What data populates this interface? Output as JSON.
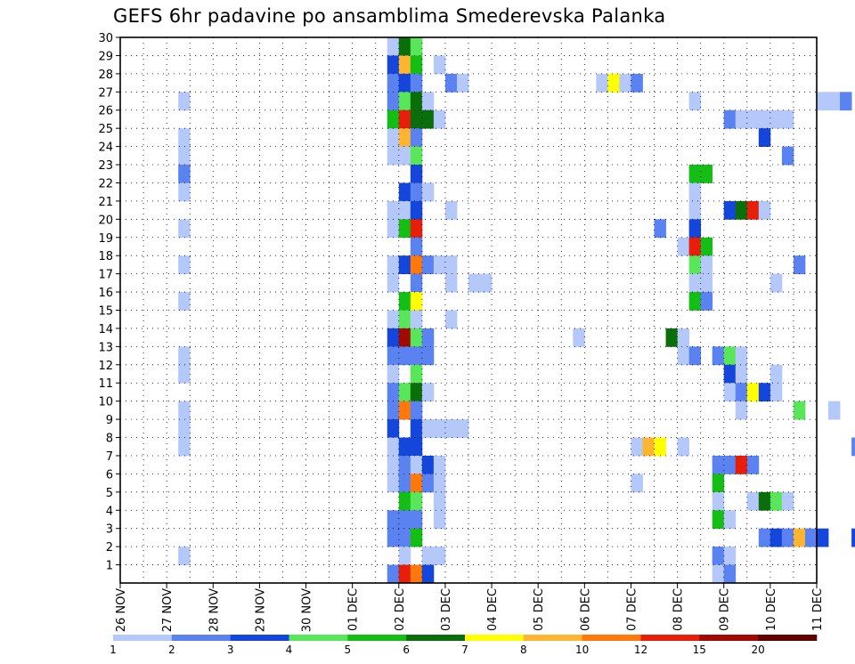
{
  "chart_data": {
    "type": "heatmap",
    "title": "GEFS 6hr padavine po ansamblima Smederevska Palanka",
    "xlabel": "",
    "ylabel": "",
    "x_ticks": [
      "26 NOV",
      "27 NOV",
      "28 NOV",
      "29 NOV",
      "30 NOV",
      "01 DEC",
      "02 DEC",
      "03 DEC",
      "04 DEC",
      "05 DEC",
      "06 DEC",
      "07 DEC",
      "08 DEC",
      "09 DEC",
      "10 DEC",
      "11 DEC"
    ],
    "y_ticks": [
      1,
      2,
      3,
      4,
      5,
      6,
      7,
      8,
      9,
      10,
      11,
      12,
      13,
      14,
      15,
      16,
      17,
      18,
      19,
      20,
      21,
      22,
      23,
      24,
      25,
      26,
      27,
      28,
      29,
      30
    ],
    "x_range_days": [
      0,
      15
    ],
    "y_range": [
      0,
      30
    ],
    "grid": "dotted",
    "colorbar": {
      "labels": [
        "1",
        "2",
        "3",
        "4",
        "5",
        "6",
        "7",
        "8",
        "10",
        "12",
        "15",
        "20"
      ],
      "colors": [
        "#b4c8fa",
        "#5a82f0",
        "#1446dc",
        "#5ae65a",
        "#14be14",
        "#0a6e0a",
        "#ffff00",
        "#ffb432",
        "#ff780a",
        "#e61e0a",
        "#a00a00",
        "#640000"
      ]
    },
    "cell_note": "each cell = [member (row), 6h step index from 26 NOV 00z, colour class 0-11]",
    "cells": [
      [
        30,
        23,
        0
      ],
      [
        30,
        24,
        5
      ],
      [
        30,
        25,
        3
      ],
      [
        29,
        23,
        2
      ],
      [
        29,
        24,
        7
      ],
      [
        29,
        25,
        4
      ],
      [
        29,
        27,
        0
      ],
      [
        29,
        64,
        0
      ],
      [
        29,
        65,
        1
      ],
      [
        29,
        66,
        5
      ],
      [
        29,
        67,
        1
      ],
      [
        29,
        71,
        0
      ],
      [
        29,
        91,
        0
      ],
      [
        29,
        92,
        1
      ],
      [
        29,
        93,
        8
      ],
      [
        29,
        94,
        0
      ],
      [
        29,
        113,
        0
      ],
      [
        29,
        114,
        9
      ],
      [
        29,
        115,
        8
      ],
      [
        29,
        116,
        3
      ],
      [
        29,
        117,
        7
      ],
      [
        29,
        118,
        2
      ],
      [
        29,
        119,
        0
      ],
      [
        29,
        120,
        0
      ],
      [
        29,
        121,
        1
      ],
      [
        29,
        122,
        1
      ],
      [
        29,
        123,
        2
      ],
      [
        29,
        135,
        0
      ],
      [
        28,
        23,
        1
      ],
      [
        28,
        24,
        2
      ],
      [
        28,
        25,
        1
      ],
      [
        28,
        28,
        1
      ],
      [
        28,
        29,
        0
      ],
      [
        28,
        41,
        0
      ],
      [
        28,
        42,
        6
      ],
      [
        28,
        43,
        0
      ],
      [
        28,
        44,
        1
      ],
      [
        28,
        69,
        5
      ],
      [
        28,
        70,
        5
      ],
      [
        28,
        104,
        4
      ],
      [
        28,
        105,
        2
      ],
      [
        28,
        106,
        0
      ],
      [
        28,
        107,
        0
      ],
      [
        28,
        120,
        8
      ],
      [
        28,
        121,
        5
      ],
      [
        28,
        122,
        0
      ],
      [
        28,
        123,
        0
      ],
      [
        27,
        5,
        0
      ],
      [
        27,
        23,
        1
      ],
      [
        27,
        24,
        3
      ],
      [
        27,
        25,
        5
      ],
      [
        27,
        26,
        0
      ],
      [
        27,
        49,
        0
      ],
      [
        27,
        60,
        0
      ],
      [
        27,
        61,
        0
      ],
      [
        27,
        62,
        1
      ],
      [
        27,
        64,
        0
      ],
      [
        27,
        65,
        0
      ],
      [
        27,
        135,
        0
      ],
      [
        26,
        23,
        4
      ],
      [
        26,
        24,
        9
      ],
      [
        26,
        25,
        5
      ],
      [
        26,
        26,
        5
      ],
      [
        26,
        27,
        0
      ],
      [
        26,
        52,
        1
      ],
      [
        26,
        53,
        0
      ],
      [
        26,
        54,
        0
      ],
      [
        26,
        55,
        0
      ],
      [
        26,
        56,
        0
      ],
      [
        26,
        57,
        0
      ],
      [
        26,
        72,
        0
      ],
      [
        25,
        5,
        0
      ],
      [
        25,
        23,
        0
      ],
      [
        25,
        24,
        7
      ],
      [
        25,
        25,
        1
      ],
      [
        25,
        55,
        2
      ],
      [
        25,
        74,
        0
      ],
      [
        24,
        5,
        0
      ],
      [
        24,
        23,
        0
      ],
      [
        24,
        24,
        0
      ],
      [
        24,
        25,
        3
      ],
      [
        24,
        57,
        1
      ],
      [
        23,
        5,
        1
      ],
      [
        23,
        25,
        2
      ],
      [
        23,
        49,
        4
      ],
      [
        23,
        50,
        4
      ],
      [
        22,
        5,
        0
      ],
      [
        22,
        24,
        2
      ],
      [
        22,
        25,
        1
      ],
      [
        22,
        26,
        0
      ],
      [
        22,
        49,
        0
      ],
      [
        21,
        23,
        0
      ],
      [
        21,
        24,
        0
      ],
      [
        21,
        25,
        2
      ],
      [
        21,
        28,
        0
      ],
      [
        21,
        49,
        0
      ],
      [
        21,
        52,
        2
      ],
      [
        21,
        53,
        5
      ],
      [
        21,
        54,
        9
      ],
      [
        21,
        55,
        0
      ],
      [
        20,
        5,
        0
      ],
      [
        20,
        23,
        0
      ],
      [
        20,
        24,
        4
      ],
      [
        20,
        25,
        9
      ],
      [
        20,
        46,
        1
      ],
      [
        20,
        49,
        2
      ],
      [
        19,
        25,
        1
      ],
      [
        19,
        48,
        0
      ],
      [
        19,
        49,
        9
      ],
      [
        19,
        50,
        4
      ],
      [
        19,
        66,
        0
      ],
      [
        19,
        79,
        0
      ],
      [
        19,
        80,
        2
      ],
      [
        19,
        81,
        2
      ],
      [
        19,
        83,
        0
      ],
      [
        19,
        84,
        8
      ],
      [
        19,
        85,
        0
      ],
      [
        19,
        86,
        0
      ],
      [
        18,
        5,
        0
      ],
      [
        18,
        23,
        0
      ],
      [
        18,
        24,
        2
      ],
      [
        18,
        25,
        8
      ],
      [
        18,
        26,
        1
      ],
      [
        18,
        27,
        0
      ],
      [
        18,
        28,
        0
      ],
      [
        18,
        49,
        3
      ],
      [
        18,
        50,
        0
      ],
      [
        18,
        58,
        1
      ],
      [
        18,
        104,
        0
      ],
      [
        18,
        110,
        0
      ],
      [
        18,
        111,
        0
      ],
      [
        18,
        112,
        0
      ],
      [
        17,
        23,
        0
      ],
      [
        17,
        25,
        1
      ],
      [
        17,
        28,
        0
      ],
      [
        17,
        30,
        0
      ],
      [
        17,
        31,
        0
      ],
      [
        17,
        49,
        0
      ],
      [
        17,
        50,
        0
      ],
      [
        17,
        56,
        0
      ],
      [
        17,
        76,
        11
      ],
      [
        17,
        77,
        9
      ],
      [
        17,
        78,
        1
      ],
      [
        17,
        79,
        0
      ],
      [
        17,
        80,
        1
      ],
      [
        17,
        81,
        0
      ],
      [
        17,
        82,
        0
      ],
      [
        17,
        83,
        0
      ],
      [
        17,
        84,
        0
      ],
      [
        16,
        5,
        0
      ],
      [
        16,
        24,
        4
      ],
      [
        16,
        25,
        6
      ],
      [
        16,
        49,
        4
      ],
      [
        16,
        50,
        1
      ],
      [
        16,
        80,
        0
      ],
      [
        16,
        81,
        0
      ],
      [
        16,
        84,
        0
      ],
      [
        16,
        85,
        0
      ],
      [
        15,
        23,
        0
      ],
      [
        15,
        24,
        3
      ],
      [
        15,
        25,
        0
      ],
      [
        15,
        28,
        0
      ],
      [
        14,
        23,
        2
      ],
      [
        14,
        24,
        10
      ],
      [
        14,
        25,
        3
      ],
      [
        14,
        26,
        1
      ],
      [
        14,
        39,
        0
      ],
      [
        14,
        47,
        5
      ],
      [
        14,
        48,
        0
      ],
      [
        14,
        64,
        1
      ],
      [
        14,
        65,
        3
      ],
      [
        14,
        66,
        4
      ],
      [
        14,
        67,
        6
      ],
      [
        14,
        68,
        9
      ],
      [
        14,
        69,
        1
      ],
      [
        14,
        70,
        0
      ],
      [
        13,
        5,
        0
      ],
      [
        13,
        23,
        1
      ],
      [
        13,
        24,
        1
      ],
      [
        13,
        25,
        1
      ],
      [
        13,
        26,
        1
      ],
      [
        13,
        48,
        0
      ],
      [
        13,
        49,
        1
      ],
      [
        13,
        51,
        1
      ],
      [
        13,
        52,
        3
      ],
      [
        13,
        53,
        0
      ],
      [
        13,
        80,
        0
      ],
      [
        13,
        82,
        0
      ],
      [
        13,
        83,
        1
      ],
      [
        13,
        84,
        5
      ],
      [
        13,
        104,
        2
      ],
      [
        13,
        105,
        0
      ],
      [
        13,
        106,
        1
      ],
      [
        13,
        107,
        9
      ],
      [
        13,
        108,
        3
      ],
      [
        13,
        109,
        5
      ],
      [
        13,
        110,
        2
      ],
      [
        13,
        135,
        1
      ],
      [
        12,
        5,
        0
      ],
      [
        12,
        23,
        0
      ],
      [
        12,
        25,
        3
      ],
      [
        12,
        52,
        2
      ],
      [
        12,
        53,
        0
      ],
      [
        12,
        56,
        0
      ],
      [
        12,
        98,
        0
      ],
      [
        12,
        99,
        1
      ],
      [
        12,
        100,
        3
      ],
      [
        12,
        101,
        1
      ],
      [
        11,
        23,
        1
      ],
      [
        11,
        24,
        3
      ],
      [
        11,
        25,
        5
      ],
      [
        11,
        26,
        0
      ],
      [
        11,
        52,
        0
      ],
      [
        11,
        53,
        1
      ],
      [
        11,
        54,
        6
      ],
      [
        11,
        55,
        2
      ],
      [
        11,
        56,
        0
      ],
      [
        11,
        70,
        0
      ],
      [
        10,
        5,
        0
      ],
      [
        10,
        23,
        1
      ],
      [
        10,
        24,
        8
      ],
      [
        10,
        25,
        1
      ],
      [
        10,
        53,
        0
      ],
      [
        10,
        58,
        3
      ],
      [
        10,
        61,
        0
      ],
      [
        10,
        74,
        0
      ],
      [
        10,
        75,
        0
      ],
      [
        10,
        78,
        8
      ],
      [
        10,
        79,
        1
      ],
      [
        10,
        80,
        0
      ],
      [
        10,
        82,
        0
      ],
      [
        10,
        83,
        1
      ],
      [
        10,
        84,
        5
      ],
      [
        10,
        85,
        0
      ],
      [
        10,
        86,
        1
      ],
      [
        10,
        87,
        5
      ],
      [
        10,
        88,
        1
      ],
      [
        10,
        91,
        1
      ],
      [
        9,
        5,
        0
      ],
      [
        9,
        23,
        2
      ],
      [
        9,
        25,
        2
      ],
      [
        9,
        26,
        0
      ],
      [
        9,
        27,
        0
      ],
      [
        9,
        28,
        0
      ],
      [
        9,
        29,
        0
      ],
      [
        9,
        83,
        0
      ],
      [
        8,
        5,
        0
      ],
      [
        8,
        23,
        0
      ],
      [
        8,
        24,
        2
      ],
      [
        8,
        25,
        2
      ],
      [
        8,
        44,
        0
      ],
      [
        8,
        45,
        7
      ],
      [
        8,
        46,
        6
      ],
      [
        8,
        48,
        0
      ],
      [
        8,
        63,
        1
      ],
      [
        8,
        80,
        1
      ],
      [
        8,
        81,
        0
      ],
      [
        8,
        83,
        1
      ],
      [
        8,
        84,
        3
      ],
      [
        8,
        85,
        3
      ],
      [
        8,
        86,
        0
      ],
      [
        7,
        23,
        0
      ],
      [
        7,
        24,
        1
      ],
      [
        7,
        25,
        0
      ],
      [
        7,
        26,
        2
      ],
      [
        7,
        27,
        0
      ],
      [
        7,
        51,
        1
      ],
      [
        7,
        52,
        1
      ],
      [
        7,
        53,
        9
      ],
      [
        7,
        54,
        1
      ],
      [
        7,
        69,
        0
      ],
      [
        7,
        70,
        0
      ],
      [
        6,
        23,
        0
      ],
      [
        6,
        24,
        1
      ],
      [
        6,
        25,
        8
      ],
      [
        6,
        26,
        1
      ],
      [
        6,
        27,
        0
      ],
      [
        6,
        44,
        0
      ],
      [
        6,
        51,
        4
      ],
      [
        6,
        79,
        2
      ],
      [
        6,
        80,
        0
      ],
      [
        5,
        24,
        4
      ],
      [
        5,
        25,
        3
      ],
      [
        5,
        27,
        0
      ],
      [
        5,
        51,
        0
      ],
      [
        5,
        54,
        0
      ],
      [
        5,
        55,
        5
      ],
      [
        5,
        56,
        3
      ],
      [
        5,
        57,
        0
      ],
      [
        5,
        72,
        0
      ],
      [
        5,
        80,
        5
      ],
      [
        5,
        81,
        7
      ],
      [
        5,
        82,
        0
      ],
      [
        5,
        83,
        3
      ],
      [
        5,
        84,
        0
      ],
      [
        5,
        85,
        0
      ],
      [
        5,
        86,
        0
      ],
      [
        4,
        23,
        1
      ],
      [
        4,
        24,
        1
      ],
      [
        4,
        25,
        1
      ],
      [
        4,
        27,
        0
      ],
      [
        4,
        51,
        4
      ],
      [
        4,
        52,
        0
      ],
      [
        4,
        71,
        3
      ],
      [
        4,
        85,
        0
      ],
      [
        4,
        86,
        2
      ],
      [
        4,
        91,
        1
      ],
      [
        4,
        92,
        3
      ],
      [
        4,
        93,
        0
      ],
      [
        4,
        97,
        6
      ],
      [
        4,
        98,
        4
      ],
      [
        3,
        23,
        1
      ],
      [
        3,
        24,
        1
      ],
      [
        3,
        25,
        4
      ],
      [
        3,
        55,
        1
      ],
      [
        3,
        56,
        2
      ],
      [
        3,
        57,
        1
      ],
      [
        3,
        58,
        7
      ],
      [
        3,
        59,
        1
      ],
      [
        3,
        60,
        2
      ],
      [
        3,
        63,
        2
      ],
      [
        3,
        64,
        2
      ],
      [
        3,
        84,
        1
      ],
      [
        3,
        88,
        4
      ],
      [
        3,
        89,
        2
      ],
      [
        3,
        90,
        0
      ],
      [
        3,
        91,
        2
      ],
      [
        2,
        5,
        0
      ],
      [
        2,
        24,
        0
      ],
      [
        2,
        26,
        0
      ],
      [
        2,
        27,
        0
      ],
      [
        2,
        51,
        1
      ],
      [
        2,
        52,
        0
      ],
      [
        2,
        81,
        1
      ],
      [
        1,
        23,
        1
      ],
      [
        1,
        24,
        9
      ],
      [
        1,
        25,
        8
      ],
      [
        1,
        26,
        2
      ],
      [
        1,
        51,
        0
      ],
      [
        1,
        52,
        1
      ],
      [
        1,
        84,
        3
      ],
      [
        1,
        85,
        0
      ]
    ]
  }
}
